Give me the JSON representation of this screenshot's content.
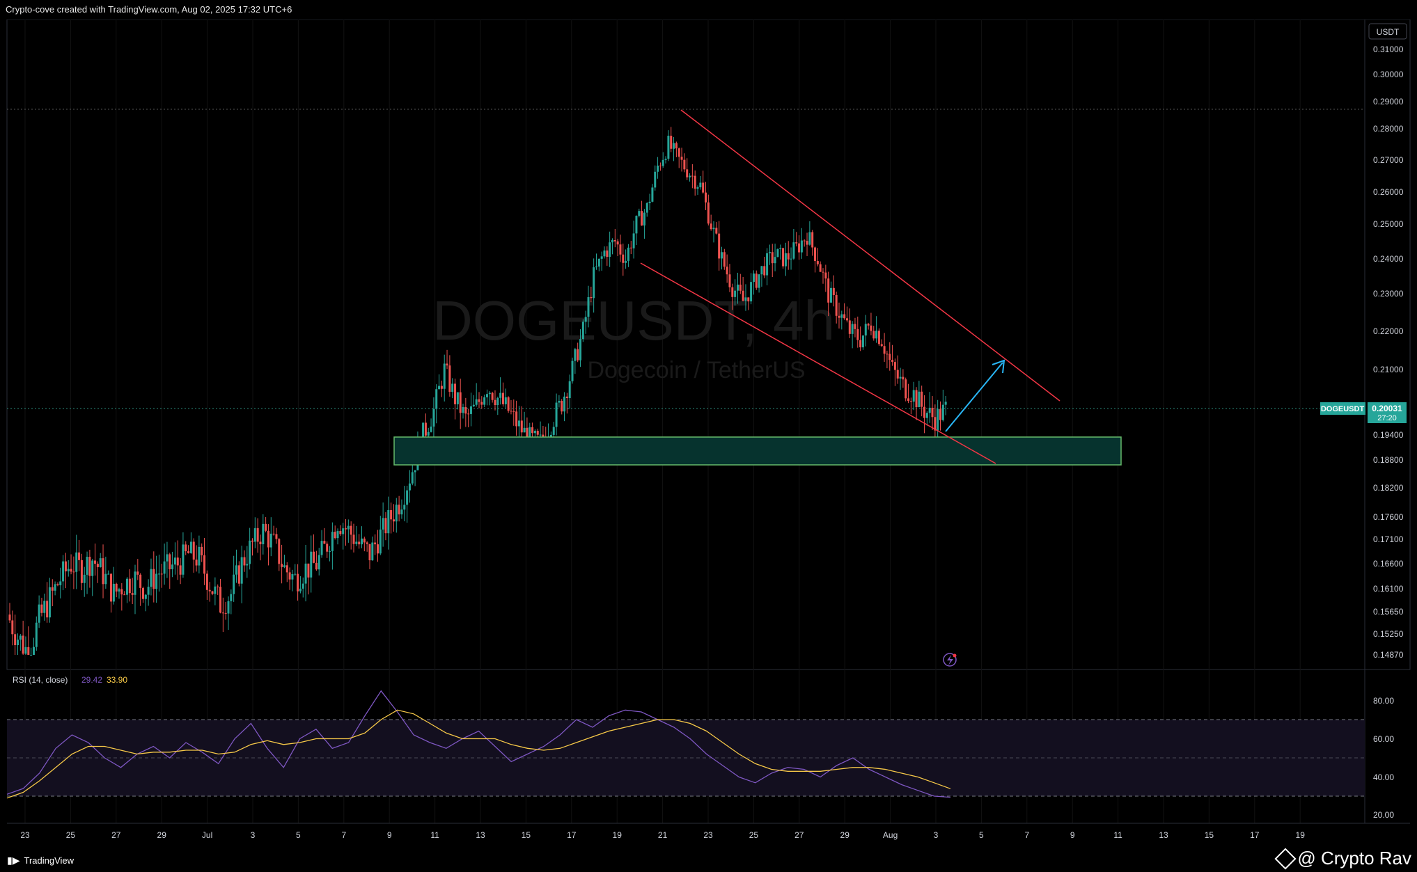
{
  "header": {
    "title": "Crypto-cove created with TradingView.com, Aug 02, 2025 17:32 UTC+6"
  },
  "watermark": {
    "symbol": "DOGEUSDT, 4h",
    "description": "Dogecoin / TetherUS"
  },
  "price_axis": {
    "currency": "USDT",
    "ticks": [
      "0.31000",
      "0.30000",
      "0.29000",
      "0.28000",
      "0.27000",
      "0.26000",
      "0.25000",
      "0.24000",
      "0.23000",
      "0.22000",
      "0.21000",
      "0.19400",
      "0.18800",
      "0.18200",
      "0.17600",
      "0.17100",
      "0.16600",
      "0.16100",
      "0.15650",
      "0.15250",
      "0.14870"
    ],
    "current_symbol": "DOGEUSDT",
    "current_price": "0.20031",
    "countdown": "27:20"
  },
  "rsi": {
    "label": "RSI (14, close)",
    "rsi_value": "29.42",
    "ma_value": "33.90",
    "ticks": [
      "80.00",
      "60.00",
      "40.00",
      "20.00"
    ]
  },
  "time_axis": {
    "ticks": [
      "23",
      "25",
      "27",
      "29",
      "Jul",
      "3",
      "5",
      "7",
      "9",
      "11",
      "13",
      "15",
      "17",
      "19",
      "21",
      "23",
      "25",
      "27",
      "29",
      "Aug",
      "3",
      "5",
      "7",
      "9",
      "11",
      "13",
      "15",
      "17",
      "19"
    ]
  },
  "footer": {
    "brand": "TradingView",
    "user": "@ Crypto Rav"
  },
  "colors": {
    "up": "#26a69a",
    "down": "#ef5350",
    "trend": "#f23645",
    "zone": "#66bb6a",
    "arrow": "#29b6f6",
    "rsi": "#7e57c2",
    "rsi_ma": "#f7c948"
  },
  "chart_data": {
    "type": "candlestick",
    "symbol": "DOGEUSDT",
    "timeframe": "4h",
    "close": [
      0.156,
      0.152,
      0.149,
      0.155,
      0.159,
      0.163,
      0.166,
      0.165,
      0.167,
      0.164,
      0.16,
      0.162,
      0.163,
      0.161,
      0.164,
      0.165,
      0.166,
      0.168,
      0.167,
      0.162,
      0.158,
      0.16,
      0.166,
      0.17,
      0.173,
      0.17,
      0.165,
      0.163,
      0.165,
      0.166,
      0.17,
      0.175,
      0.173,
      0.17,
      0.168,
      0.172,
      0.176,
      0.18,
      0.186,
      0.194,
      0.2,
      0.21,
      0.203,
      0.198,
      0.201,
      0.206,
      0.203,
      0.2,
      0.196,
      0.193,
      0.192,
      0.197,
      0.202,
      0.21,
      0.22,
      0.235,
      0.242,
      0.245,
      0.24,
      0.25,
      0.255,
      0.268,
      0.275,
      0.27,
      0.266,
      0.262,
      0.25,
      0.24,
      0.232,
      0.228,
      0.233,
      0.238,
      0.241,
      0.24,
      0.243,
      0.247,
      0.24,
      0.23,
      0.225,
      0.22,
      0.218,
      0.222,
      0.218,
      0.21,
      0.206,
      0.204,
      0.2,
      0.198,
      0.2003
    ],
    "rsi": [
      31,
      34,
      42,
      55,
      62,
      58,
      50,
      45,
      52,
      56,
      50,
      58,
      53,
      47,
      60,
      68,
      55,
      45,
      60,
      65,
      55,
      58,
      72,
      85,
      74,
      62,
      58,
      55,
      60,
      64,
      56,
      48,
      52,
      56,
      62,
      70,
      66,
      72,
      75,
      74,
      70,
      66,
      60,
      52,
      46,
      40,
      37,
      42,
      45,
      44,
      40,
      46,
      50,
      44,
      40,
      36,
      33,
      30,
      29.42
    ],
    "rsi_ma": [
      29,
      32,
      38,
      45,
      52,
      56,
      56,
      54,
      52,
      53,
      53,
      54,
      54,
      52,
      53,
      57,
      59,
      57,
      58,
      60,
      60,
      60,
      63,
      70,
      75,
      73,
      68,
      63,
      60,
      60,
      60,
      57,
      55,
      54,
      55,
      58,
      61,
      64,
      66,
      68,
      70,
      70,
      68,
      64,
      58,
      52,
      47,
      44,
      43,
      43,
      43,
      44,
      45,
      45,
      44,
      42,
      40,
      37,
      33.9
    ],
    "trendlines": [
      {
        "name": "upper",
        "from": {
          "date": "Jul 21",
          "price": 0.287
        },
        "to": {
          "date": "Aug 7",
          "price": 0.202
        }
      },
      {
        "name": "lower",
        "from": {
          "date": "Jul 19",
          "price": 0.238
        },
        "to": {
          "date": "Aug 4",
          "price": 0.188
        }
      }
    ],
    "support_zone": {
      "top": 0.193,
      "bottom": 0.187
    },
    "projection_target": 0.212
  }
}
